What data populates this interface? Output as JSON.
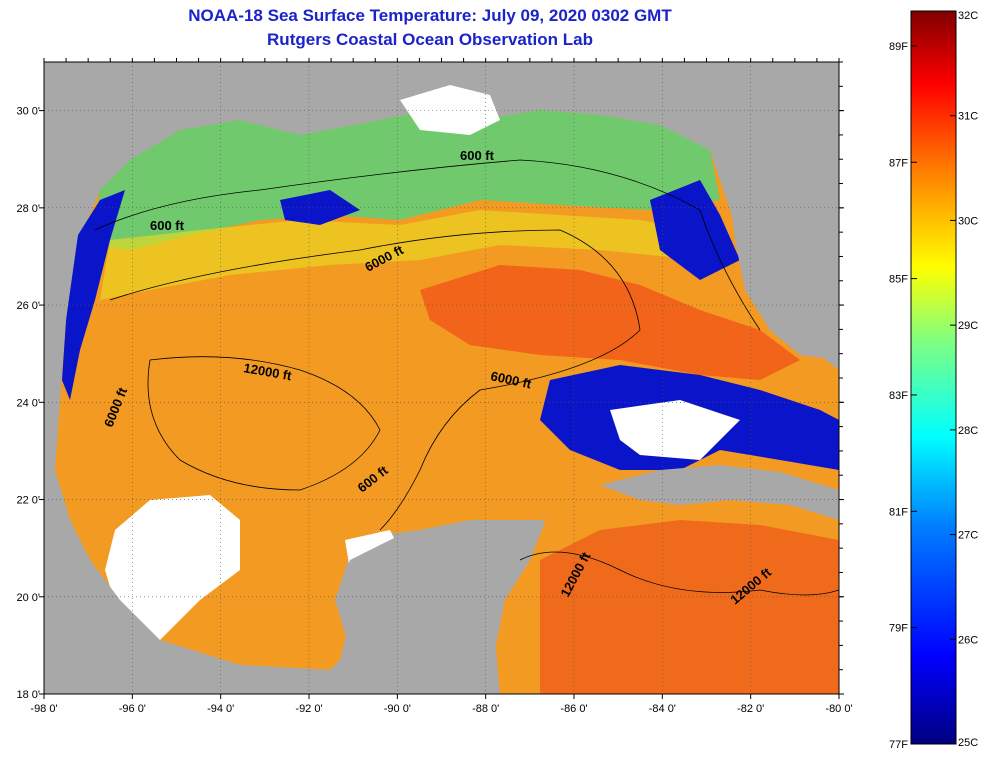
{
  "title": "NOAA-18 Sea Surface Temperature:  July 09, 2020 0302 GMT",
  "subtitle": "Rutgers Coastal Ocean Observation Lab",
  "map": {
    "region": "Gulf of Mexico",
    "lon_range": [
      -98,
      -80
    ],
    "lat_range": [
      18,
      31
    ],
    "lat_ticks": [
      "18 0'",
      "20 0'",
      "22 0'",
      "24 0'",
      "26 0'",
      "28 0'",
      "30 0'"
    ],
    "lon_ticks": [
      "-98 0'",
      "-96 0'",
      "-94 0'",
      "-92 0'",
      "-90 0'",
      "-88 0'",
      "-86 0'",
      "-84 0'",
      "-82 0'",
      "-80 0'"
    ],
    "contour_labels": [
      "600 ft",
      "6000 ft",
      "600 ft",
      "12000 ft",
      "6000 ft",
      "6000 ft",
      "600 ft",
      "12000 ft",
      "12000 ft"
    ],
    "colors": {
      "land": "#a8a8a8",
      "cloud": "#ffffff",
      "frame": "#000000"
    }
  },
  "colorbar": {
    "celsius": [
      "32C",
      "31C",
      "30C",
      "29C",
      "28C",
      "27C",
      "26C",
      "25C"
    ],
    "fahrenheit": [
      "89F",
      "87F",
      "85F",
      "83F",
      "81F",
      "79F",
      "77F"
    ],
    "range_c": [
      25,
      32
    ],
    "colors": [
      "#000080",
      "#0000ff",
      "#0080ff",
      "#00ffff",
      "#80ff80",
      "#ffff00",
      "#ff8000",
      "#ff0000",
      "#800000"
    ]
  }
}
